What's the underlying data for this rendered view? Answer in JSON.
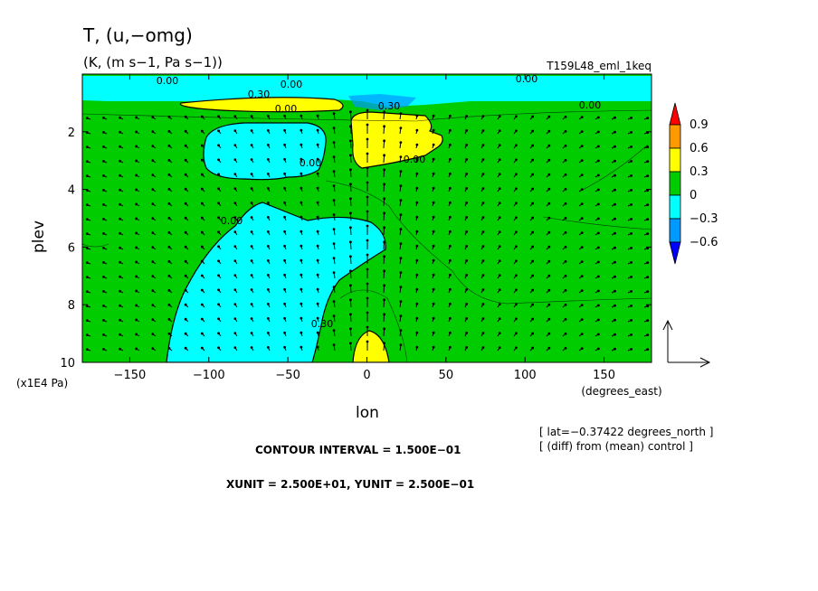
{
  "chart_data": {
    "type": "heatmap",
    "title": "T, (u,−omg)",
    "subtitle": "(K, (m s−1, Pa s−1))",
    "experiment": "T159L48_eml_1keq",
    "xlabel": "lon",
    "xunit": "(degrees_east)",
    "ylabel": "plev",
    "yunit": "(x1E4 Pa)",
    "xlim": [
      -180,
      180
    ],
    "ylim": [
      10,
      0
    ],
    "x_ticks": [
      -150,
      -100,
      -50,
      0,
      50,
      100,
      150
    ],
    "y_ticks": [
      2,
      4,
      6,
      8,
      10
    ],
    "x_tick_labels": [
      "−150",
      "−100",
      "−50",
      "0",
      "50",
      "100",
      "150"
    ],
    "y_tick_labels": [
      "2",
      "4",
      "6",
      "8",
      "10"
    ],
    "colorbar": {
      "levels": [
        0.9,
        0.6,
        0.3,
        0,
        -0.3,
        -0.6
      ],
      "labels": [
        "0.9",
        "0.6",
        "0.3",
        "0",
        "−0.3",
        "−0.6"
      ],
      "colors": [
        "#ff0000",
        "#ff9900",
        "#ffff00",
        "#00cc00",
        "#00ffff",
        "#0099ff",
        "#0000ff"
      ]
    },
    "contour_labels": [
      "0.00",
      "0.30",
      "0.00",
      "0.00",
      "0.30",
      "0.00",
      "0.00",
      "0.30",
      "0.00",
      "0.00",
      "0.00"
    ],
    "info": {
      "lat": "[ lat=−0.37422 degrees_north ]",
      "diff": "[ (diff) from (mean) control ]",
      "contour_interval": "CONTOUR INTERVAL = 1.500E−01",
      "units": "XUNIT = 2.500E+01, YUNIT = 2.500E−01"
    },
    "regions": [
      {
        "name": "positive-anomaly-upper-west",
        "value_range": [
          0.3,
          0.6
        ],
        "lon": [
          -120,
          -10
        ],
        "plev": [
          0.7,
          1.1
        ]
      },
      {
        "name": "positive-anomaly-upper-center",
        "value_range": [
          0.3,
          0.6
        ],
        "lon": [
          -10,
          47
        ],
        "plev": [
          1.5,
          3.2
        ]
      },
      {
        "name": "positive-anomaly-surface",
        "value_range": [
          0.3,
          0.6
        ],
        "lon": [
          -5,
          15
        ],
        "plev": [
          9.2,
          10
        ]
      },
      {
        "name": "negative-anomaly-west-upper",
        "value_range": [
          -0.3,
          0
        ],
        "lon": [
          -100,
          -27
        ],
        "plev": [
          1.8,
          3.7
        ]
      },
      {
        "name": "negative-anomaly-west-lower",
        "value_range": [
          -0.3,
          0
        ],
        "lon": [
          -127,
          -17
        ],
        "plev": [
          4.4,
          10
        ]
      },
      {
        "name": "negative-anomaly-top-layer",
        "value_range": [
          -0.6,
          0
        ],
        "lon": [
          -180,
          180
        ],
        "plev": [
          0.2,
          0.9
        ]
      }
    ]
  }
}
